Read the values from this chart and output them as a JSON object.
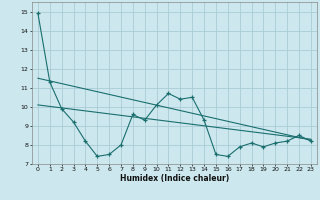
{
  "title": "",
  "xlabel": "Humidex (Indice chaleur)",
  "ylabel": "",
  "xlim": [
    -0.5,
    23.5
  ],
  "ylim": [
    7,
    15.5
  ],
  "yticks": [
    7,
    8,
    9,
    10,
    11,
    12,
    13,
    14,
    15
  ],
  "xticks": [
    0,
    1,
    2,
    3,
    4,
    5,
    6,
    7,
    8,
    9,
    10,
    11,
    12,
    13,
    14,
    15,
    16,
    17,
    18,
    19,
    20,
    21,
    22,
    23
  ],
  "background_color": "#cce8ee",
  "grid_color": "#aaccd4",
  "line_color": "#1a6e6e",
  "series1_x": [
    0,
    1,
    2,
    3,
    4,
    5,
    6,
    7,
    8,
    9,
    10,
    11,
    12,
    13,
    14,
    15,
    16,
    17,
    18,
    19,
    20,
    21,
    22,
    23
  ],
  "series1_y": [
    14.9,
    11.3,
    9.9,
    9.2,
    8.2,
    7.4,
    7.5,
    8.0,
    9.6,
    9.3,
    10.1,
    10.7,
    10.4,
    10.5,
    9.3,
    7.5,
    7.4,
    7.9,
    8.1,
    7.9,
    8.1,
    8.2,
    8.5,
    8.2
  ],
  "series2_x": [
    0,
    23
  ],
  "series2_y": [
    11.5,
    8.25
  ],
  "series3_x": [
    0,
    23
  ],
  "series3_y": [
    10.1,
    8.3
  ]
}
